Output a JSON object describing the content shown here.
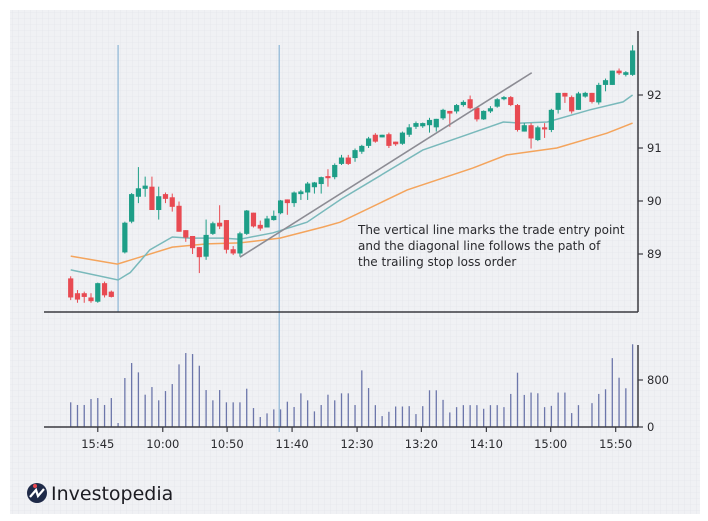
{
  "chart_data": {
    "type": "candlestick",
    "title": "",
    "annotation": [
      "The vertical line marks the trade entry point",
      "and the diagonal line follows the path of",
      "the trailing stop loss order"
    ],
    "price_axis": {
      "ticks": [
        "92",
        "91",
        "90",
        "89"
      ],
      "tick_values": [
        92,
        91,
        90,
        89
      ],
      "ylim": [
        87.9,
        93.0
      ],
      "position": "right"
    },
    "volume_axis": {
      "ticks": [
        "800",
        "0"
      ],
      "tick_values": [
        800,
        0
      ],
      "ylim": [
        0,
        1450
      ],
      "position": "right"
    },
    "x_axis": {
      "tick_labels": [
        "15:45",
        "10:00",
        "10:50",
        "11:40",
        "12:30",
        "13:20",
        "14:10",
        "15:00",
        "15:50"
      ],
      "tick_index": [
        4,
        13.6,
        23.1,
        32.7,
        42.3,
        51.8,
        61.4,
        70.9,
        80.5
      ]
    },
    "colors": {
      "up": "#1d9e87",
      "down": "#e84a52",
      "fast_ma": "#79b9bb",
      "slow_ma": "#f4a45c",
      "trail": "#8c8c94",
      "volume": "#6c76aa",
      "entry_line": "#94bad8",
      "axis": "#3a3a40"
    },
    "candles": [
      [
        88.54,
        88.58,
        88.13,
        88.18
      ],
      [
        88.26,
        88.32,
        88.08,
        88.14
      ],
      [
        88.26,
        88.29,
        88.08,
        88.19
      ],
      [
        88.18,
        88.26,
        88.08,
        88.11
      ],
      [
        88.1,
        88.46,
        88.08,
        88.45
      ],
      [
        88.45,
        88.48,
        88.18,
        88.22
      ],
      [
        88.29,
        88.31,
        88.18,
        88.19
      ],
      null,
      [
        89.03,
        89.61,
        89.01,
        89.59
      ],
      [
        89.61,
        90.15,
        89.58,
        90.13
      ],
      [
        90.08,
        90.64,
        89.96,
        90.24
      ],
      [
        90.23,
        90.46,
        90.08,
        90.29
      ],
      [
        90.27,
        90.46,
        89.83,
        89.83
      ],
      [
        89.83,
        90.27,
        89.65,
        90.09
      ],
      [
        90.13,
        90.16,
        89.96,
        90.04
      ],
      [
        90.07,
        90.14,
        89.8,
        89.89
      ],
      [
        89.91,
        89.99,
        89.42,
        89.42
      ],
      [
        89.45,
        89.45,
        89.23,
        89.31
      ],
      [
        89.34,
        89.34,
        89.0,
        89.11
      ],
      [
        89.13,
        89.13,
        88.64,
        88.94
      ],
      [
        88.95,
        89.65,
        88.89,
        89.36
      ],
      [
        89.38,
        89.61,
        89.36,
        89.58
      ],
      [
        89.59,
        89.92,
        89.47,
        89.52
      ],
      [
        89.64,
        89.64,
        89.01,
        89.08
      ],
      [
        89.09,
        89.15,
        88.98,
        89.01
      ],
      [
        89.01,
        89.42,
        88.95,
        89.39
      ],
      [
        89.38,
        89.83,
        89.36,
        89.82
      ],
      [
        89.78,
        89.78,
        89.5,
        89.52
      ],
      [
        89.55,
        89.63,
        89.44,
        89.48
      ],
      [
        89.5,
        89.72,
        89.5,
        89.67
      ],
      [
        89.64,
        89.82,
        89.63,
        89.72
      ],
      [
        89.77,
        90.02,
        89.75,
        90.01
      ],
      [
        90.03,
        90.03,
        89.74,
        89.96
      ],
      [
        89.96,
        90.18,
        89.89,
        90.16
      ],
      [
        90.13,
        90.21,
        90.02,
        90.18
      ],
      [
        90.16,
        90.36,
        90.02,
        90.33
      ],
      [
        90.26,
        90.36,
        90.14,
        90.35
      ],
      [
        90.32,
        90.46,
        90.14,
        90.45
      ],
      [
        90.47,
        90.6,
        90.27,
        90.43
      ],
      [
        90.45,
        90.71,
        90.41,
        90.68
      ],
      [
        90.7,
        90.87,
        90.68,
        90.82
      ],
      [
        90.82,
        90.87,
        90.68,
        90.7
      ],
      [
        90.81,
        90.99,
        90.74,
        90.96
      ],
      [
        90.93,
        91.06,
        90.89,
        91.04
      ],
      [
        91.04,
        91.21,
        91.0,
        91.18
      ],
      [
        91.25,
        91.28,
        91.1,
        91.12
      ],
      [
        91.2,
        91.25,
        91.2,
        91.25
      ],
      [
        91.26,
        91.29,
        91.0,
        91.04
      ],
      [
        91.12,
        91.12,
        91.04,
        91.07
      ],
      [
        91.08,
        91.31,
        91.06,
        91.29
      ],
      [
        91.25,
        91.45,
        91.21,
        91.39
      ],
      [
        91.4,
        91.5,
        91.36,
        91.47
      ],
      [
        91.41,
        91.48,
        91.38,
        91.47
      ],
      [
        91.43,
        91.57,
        91.29,
        91.53
      ],
      [
        91.39,
        91.55,
        91.31,
        91.55
      ],
      [
        91.56,
        91.74,
        91.53,
        91.72
      ],
      [
        91.7,
        91.7,
        91.4,
        91.65
      ],
      [
        91.69,
        91.83,
        91.65,
        91.81
      ],
      [
        91.81,
        91.9,
        91.78,
        91.87
      ],
      [
        91.92,
        91.99,
        91.73,
        91.75
      ],
      [
        91.76,
        91.76,
        91.5,
        91.54
      ],
      [
        91.54,
        91.71,
        91.53,
        91.7
      ],
      [
        91.69,
        91.79,
        91.66,
        91.75
      ],
      [
        91.78,
        91.94,
        91.76,
        91.92
      ],
      [
        91.92,
        91.98,
        91.9,
        91.96
      ],
      [
        91.96,
        91.98,
        91.79,
        91.81
      ],
      [
        91.81,
        91.83,
        91.31,
        91.34
      ],
      [
        91.31,
        91.47,
        91.31,
        91.43
      ],
      [
        91.43,
        91.47,
        90.99,
        91.18
      ],
      [
        91.15,
        91.42,
        91.13,
        91.39
      ],
      [
        91.39,
        91.47,
        91.19,
        91.35
      ],
      [
        91.34,
        91.74,
        91.3,
        91.72
      ],
      [
        91.72,
        92.04,
        91.65,
        92.04
      ],
      [
        92.04,
        92.04,
        91.85,
        91.97
      ],
      [
        91.96,
        91.99,
        91.65,
        91.69
      ],
      [
        91.72,
        92.06,
        91.72,
        92.03
      ],
      [
        91.97,
        92.06,
        91.95,
        92.04
      ],
      [
        92.04,
        92.04,
        91.84,
        91.87
      ],
      [
        91.86,
        92.23,
        91.82,
        92.19
      ],
      [
        92.19,
        92.31,
        92.07,
        92.28
      ],
      [
        92.19,
        92.46,
        92.19,
        92.46
      ],
      [
        92.46,
        92.5,
        92.38,
        92.41
      ],
      [
        92.38,
        92.45,
        92.35,
        92.43
      ],
      [
        92.38,
        92.94,
        92.36,
        92.84
      ]
    ],
    "volume": [
      420,
      375,
      375,
      476,
      493,
      375,
      493,
      68,
      834,
      1089,
      930,
      550,
      680,
      454,
      612,
      731,
      1066,
      1259,
      1242,
      1043,
      629,
      454,
      629,
      420,
      420,
      420,
      652,
      323,
      170,
      232,
      300,
      300,
      431,
      340,
      573,
      454,
      266,
      374,
      550,
      454,
      573,
      573,
      374,
      964,
      663,
      372,
      186,
      259,
      349,
      349,
      355,
      220,
      355,
      625,
      625,
      462,
      248,
      338,
      372,
      372,
      372,
      310,
      372,
      372,
      338,
      563,
      924,
      546,
      586,
      574,
      338,
      360,
      586,
      586,
      237,
      372,
      0,
      406,
      563,
      642,
      1172,
      839,
      659,
      1408
    ],
    "fast_ma": [
      [
        0,
        88.7
      ],
      [
        7,
        88.51
      ],
      [
        8.8,
        88.65
      ],
      [
        11.7,
        89.08
      ],
      [
        15,
        89.32
      ],
      [
        17.6,
        89.3
      ],
      [
        22.5,
        89.3
      ],
      [
        25,
        89.28
      ],
      [
        29.9,
        89.4
      ],
      [
        34.9,
        89.6
      ],
      [
        40,
        90.04
      ],
      [
        44.7,
        90.4
      ],
      [
        52,
        90.96
      ],
      [
        58.5,
        91.25
      ],
      [
        63.9,
        91.49
      ],
      [
        66.4,
        91.47
      ],
      [
        70.4,
        91.49
      ],
      [
        76.7,
        91.72
      ],
      [
        81.6,
        91.87
      ],
      [
        83,
        92.0
      ]
    ],
    "slow_ma": [
      [
        0,
        88.96
      ],
      [
        6.9,
        88.81
      ],
      [
        10.2,
        88.94
      ],
      [
        15,
        89.13
      ],
      [
        20.1,
        89.19
      ],
      [
        25,
        89.21
      ],
      [
        30.9,
        89.3
      ],
      [
        37.3,
        89.51
      ],
      [
        39.8,
        89.6
      ],
      [
        49.7,
        90.21
      ],
      [
        59.4,
        90.62
      ],
      [
        64.4,
        90.87
      ],
      [
        71.8,
        91.0
      ],
      [
        79.2,
        91.28
      ],
      [
        83,
        91.47
      ]
    ],
    "trailing_stop_line": [
      [
        25.0,
        88.94
      ],
      [
        68.1,
        92.42
      ]
    ],
    "entry_lines_index": [
      7.0,
      30.8
    ]
  },
  "brand": {
    "name": "Investopedia"
  }
}
